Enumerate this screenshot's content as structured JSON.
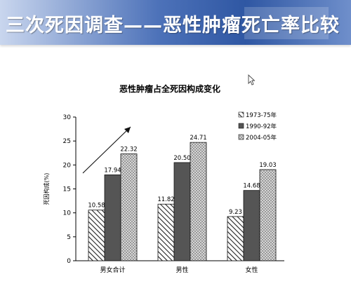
{
  "slide": {
    "title": "三次死因调查——恶性肿瘤死亡率比较"
  },
  "icons": {
    "cursor": "arrow-cursor-icon",
    "trend": "trend-arrow-icon"
  },
  "chart_data": {
    "type": "bar",
    "title": "恶性肿瘤占全死因构成变化",
    "ylabel": "死因构成(%)",
    "xlabel": "",
    "ylim": [
      0,
      30
    ],
    "yticks": [
      0,
      5,
      10,
      15,
      20,
      25,
      30
    ],
    "categories": [
      "男女合计",
      "男性",
      "女性"
    ],
    "series": [
      {
        "name": "1973-75年",
        "values": [
          10.58,
          11.82,
          9.23
        ],
        "fill": "hatch"
      },
      {
        "name": "1990-92年",
        "values": [
          17.94,
          20.5,
          14.68
        ],
        "fill": "#555555"
      },
      {
        "name": "2004-05年",
        "values": [
          22.32,
          24.71,
          19.03
        ],
        "fill": "crosshatch"
      }
    ],
    "value_labels": [
      [
        "10.58",
        "11.82",
        "9.23"
      ],
      [
        "17.94",
        "20.50",
        "14.68"
      ],
      [
        "22.32",
        "24.71",
        "19.03"
      ]
    ],
    "legend_position": "top-right",
    "grid": false
  }
}
